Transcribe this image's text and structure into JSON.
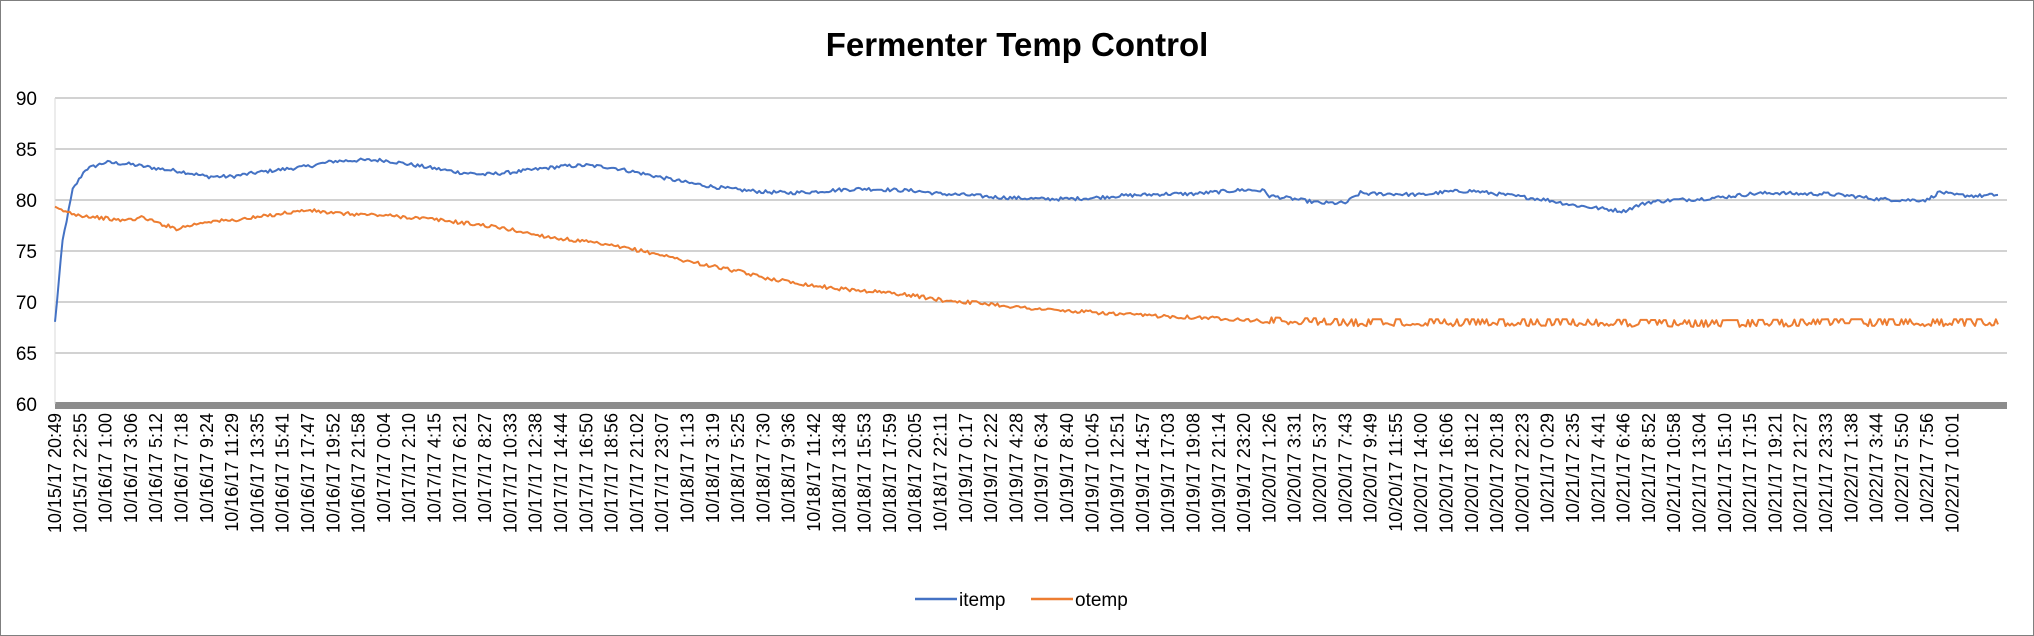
{
  "chart_data": {
    "type": "line",
    "title": "Fermenter Temp Control",
    "xlabel": "",
    "ylabel": "",
    "ylim": [
      60,
      90
    ],
    "yticks": [
      60,
      65,
      70,
      75,
      80,
      85,
      90
    ],
    "grid": true,
    "legend_position": "bottom",
    "x_tick_labels": [
      "10/15/17 20:49",
      "10/15/17 22:55",
      "10/16/17 1:00",
      "10/16/17 3:06",
      "10/16/17 5:12",
      "10/16/17 7:18",
      "10/16/17 9:24",
      "10/16/17 11:29",
      "10/16/17 13:35",
      "10/16/17 15:41",
      "10/16/17 17:47",
      "10/16/17 19:52",
      "10/16/17 21:58",
      "10/17/17 0:04",
      "10/17/17 2:10",
      "10/17/17 4:15",
      "10/17/17 6:21",
      "10/17/17 8:27",
      "10/17/17 10:33",
      "10/17/17 12:38",
      "10/17/17 14:44",
      "10/17/17 16:50",
      "10/17/17 18:56",
      "10/17/17 21:02",
      "10/17/17 23:07",
      "10/18/17 1:13",
      "10/18/17 3:19",
      "10/18/17 5:25",
      "10/18/17 7:30",
      "10/18/17 9:36",
      "10/18/17 11:42",
      "10/18/17 13:48",
      "10/18/17 15:53",
      "10/18/17 17:59",
      "10/18/17 20:05",
      "10/18/17 22:11",
      "10/19/17 0:17",
      "10/19/17 2:22",
      "10/19/17 4:28",
      "10/19/17 6:34",
      "10/19/17 8:40",
      "10/19/17 10:45",
      "10/19/17 12:51",
      "10/19/17 14:57",
      "10/19/17 17:03",
      "10/19/17 19:08",
      "10/19/17 21:14",
      "10/19/17 23:20",
      "10/20/17 1:26",
      "10/20/17 3:31",
      "10/20/17 5:37",
      "10/20/17 7:43",
      "10/20/17 9:49",
      "10/20/17 11:55",
      "10/20/17 14:00",
      "10/20/17 16:06",
      "10/20/17 18:12",
      "10/20/17 20:18",
      "10/20/17 22:23",
      "10/21/17 0:29",
      "10/21/17 2:35",
      "10/21/17 4:41",
      "10/21/17 6:46",
      "10/21/17 8:52",
      "10/21/17 10:58",
      "10/21/17 13:04",
      "10/21/17 15:10",
      "10/21/17 17:15",
      "10/21/17 19:21",
      "10/21/17 21:27",
      "10/21/17 23:33",
      "10/22/17 1:38",
      "10/22/17 3:44",
      "10/22/17 5:50",
      "10/22/17 7:56",
      "10/22/17 10:01"
    ],
    "series": [
      {
        "name": "itemp",
        "color": "#4472C4",
        "points": [
          [
            0,
            68
          ],
          [
            0.3,
            76
          ],
          [
            0.7,
            81
          ],
          [
            1.2,
            83
          ],
          [
            2,
            83.7
          ],
          [
            3,
            83.5
          ],
          [
            4,
            83.1
          ],
          [
            5,
            82.8
          ],
          [
            6,
            82.3
          ],
          [
            7,
            82.3
          ],
          [
            8,
            82.7
          ],
          [
            9,
            83.0
          ],
          [
            10,
            83.3
          ],
          [
            11,
            83.8
          ],
          [
            12,
            83.9
          ],
          [
            13,
            83.9
          ],
          [
            14,
            83.5
          ],
          [
            15,
            83.1
          ],
          [
            16,
            82.7
          ],
          [
            17,
            82.5
          ],
          [
            18,
            82.7
          ],
          [
            19,
            83.0
          ],
          [
            20,
            83.3
          ],
          [
            21,
            83.4
          ],
          [
            22,
            83.2
          ],
          [
            23,
            82.7
          ],
          [
            24,
            82.2
          ],
          [
            25,
            81.7
          ],
          [
            26,
            81.3
          ],
          [
            27,
            81.0
          ],
          [
            28,
            80.8
          ],
          [
            29,
            80.7
          ],
          [
            30,
            80.8
          ],
          [
            31,
            81.0
          ],
          [
            32,
            81.1
          ],
          [
            33,
            81.0
          ],
          [
            34,
            80.9
          ],
          [
            35,
            80.6
          ],
          [
            36,
            80.5
          ],
          [
            37,
            80.3
          ],
          [
            38,
            80.2
          ],
          [
            39,
            80.1
          ],
          [
            40,
            80.1
          ],
          [
            41,
            80.2
          ],
          [
            42,
            80.4
          ],
          [
            43,
            80.5
          ],
          [
            44,
            80.6
          ],
          [
            45,
            80.6
          ],
          [
            46,
            80.8
          ],
          [
            47,
            81.0
          ],
          [
            47.8,
            80.9
          ],
          [
            48,
            80.4
          ],
          [
            49,
            80.1
          ],
          [
            50,
            79.7
          ],
          [
            51,
            79.7
          ],
          [
            51.6,
            80.7
          ],
          [
            52,
            80.6
          ],
          [
            53,
            80.6
          ],
          [
            54,
            80.5
          ],
          [
            55,
            80.8
          ],
          [
            56,
            80.9
          ],
          [
            57,
            80.6
          ],
          [
            58,
            80.3
          ],
          [
            59,
            80.0
          ],
          [
            60,
            79.5
          ],
          [
            61,
            79.2
          ],
          [
            62,
            78.9
          ],
          [
            62.5,
            79.4
          ],
          [
            63,
            79.8
          ],
          [
            64,
            80.0
          ],
          [
            65,
            80.1
          ],
          [
            66,
            80.3
          ],
          [
            67,
            80.6
          ],
          [
            68,
            80.7
          ],
          [
            69,
            80.6
          ],
          [
            70,
            80.6
          ],
          [
            71,
            80.4
          ],
          [
            72,
            80.1
          ],
          [
            73,
            80.0
          ],
          [
            74,
            80.0
          ],
          [
            74.5,
            80.8
          ],
          [
            75,
            80.5
          ],
          [
            76,
            80.4
          ],
          [
            76.8,
            80.5
          ]
        ]
      },
      {
        "name": "otemp",
        "color": "#ED7D31",
        "points": [
          [
            0,
            79.2
          ],
          [
            0.5,
            78.8
          ],
          [
            1,
            78.5
          ],
          [
            2,
            78.2
          ],
          [
            2.5,
            78.0
          ],
          [
            3,
            78.1
          ],
          [
            3.5,
            78.3
          ],
          [
            4,
            77.8
          ],
          [
            4.8,
            77.2
          ],
          [
            5.5,
            77.6
          ],
          [
            6,
            77.9
          ],
          [
            7,
            78.0
          ],
          [
            8,
            78.3
          ],
          [
            9,
            78.7
          ],
          [
            10,
            79.0
          ],
          [
            11,
            78.7
          ],
          [
            12,
            78.6
          ],
          [
            13,
            78.5
          ],
          [
            14,
            78.3
          ],
          [
            15,
            78.1
          ],
          [
            16,
            77.8
          ],
          [
            17,
            77.5
          ],
          [
            18,
            77.1
          ],
          [
            19,
            76.6
          ],
          [
            20,
            76.2
          ],
          [
            21,
            75.9
          ],
          [
            22,
            75.5
          ],
          [
            23,
            75.1
          ],
          [
            24,
            74.6
          ],
          [
            25,
            74.0
          ],
          [
            26,
            73.5
          ],
          [
            27,
            73.0
          ],
          [
            28,
            72.4
          ],
          [
            29,
            72.0
          ],
          [
            30,
            71.6
          ],
          [
            31,
            71.3
          ],
          [
            32,
            71.1
          ],
          [
            33,
            70.9
          ],
          [
            34,
            70.6
          ],
          [
            35,
            70.2
          ],
          [
            36,
            70.0
          ],
          [
            37,
            69.8
          ],
          [
            38,
            69.5
          ],
          [
            39,
            69.3
          ],
          [
            40,
            69.1
          ],
          [
            41,
            69.0
          ],
          [
            42,
            68.8
          ],
          [
            43,
            68.7
          ],
          [
            44,
            68.6
          ],
          [
            45,
            68.5
          ],
          [
            46,
            68.4
          ],
          [
            47,
            68.3
          ],
          [
            48,
            68.0
          ],
          [
            49,
            67.9
          ],
          [
            50,
            67.9
          ],
          [
            51,
            67.8
          ],
          [
            55,
            67.8
          ],
          [
            60,
            67.8
          ],
          [
            65,
            67.7
          ],
          [
            70,
            67.8
          ],
          [
            76.8,
            67.8
          ]
        ]
      }
    ]
  }
}
